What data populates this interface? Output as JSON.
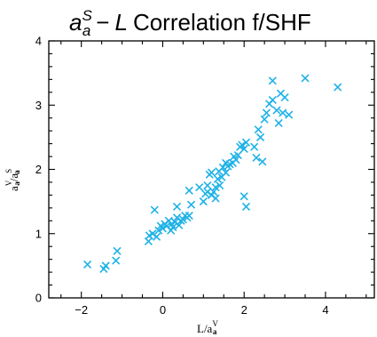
{
  "chart_data": {
    "type": "scatter",
    "title": {
      "math_base": "a",
      "math_sup": "S",
      "math_sub": "a",
      "operator": "−",
      "math_L": "L",
      "text": "Correlation f/SHF"
    },
    "xlabel": {
      "prefix": "L/a",
      "sup": "V",
      "sub": "a"
    },
    "ylabel": {
      "part1": "a",
      "part1_sup": "V",
      "part1_sub": "a",
      "slash": "/a",
      "part2_sup": "S",
      "part2_sub": "a"
    },
    "xlim": [
      -2.8,
      5.2
    ],
    "ylim": [
      0,
      4
    ],
    "x_ticks": [
      -2,
      0,
      2,
      4
    ],
    "x_tick_labels": [
      "−2",
      "0",
      "2",
      "4"
    ],
    "y_ticks": [
      0,
      1,
      2,
      3,
      4
    ],
    "y_tick_labels": [
      "0",
      "1",
      "2",
      "3",
      "4"
    ],
    "grid": false,
    "marker": "x",
    "color": "#1fb2e6",
    "points": [
      [
        -1.85,
        0.52
      ],
      [
        -1.45,
        0.45
      ],
      [
        -1.4,
        0.5
      ],
      [
        -1.15,
        0.58
      ],
      [
        -1.12,
        0.73
      ],
      [
        -0.35,
        0.88
      ],
      [
        -0.33,
        0.97
      ],
      [
        -0.25,
        1.0
      ],
      [
        -0.2,
        1.37
      ],
      [
        -0.15,
        0.95
      ],
      [
        -0.1,
        1.05
      ],
      [
        -0.05,
        1.12
      ],
      [
        0.0,
        1.08
      ],
      [
        0.05,
        1.15
      ],
      [
        0.1,
        1.12
      ],
      [
        0.15,
        1.2
      ],
      [
        0.2,
        1.05
      ],
      [
        0.22,
        1.15
      ],
      [
        0.25,
        1.1
      ],
      [
        0.3,
        1.18
      ],
      [
        0.35,
        1.25
      ],
      [
        0.35,
        1.42
      ],
      [
        0.4,
        1.13
      ],
      [
        0.45,
        1.2
      ],
      [
        0.5,
        1.22
      ],
      [
        0.55,
        1.28
      ],
      [
        0.6,
        1.25
      ],
      [
        0.65,
        1.28
      ],
      [
        0.7,
        1.45
      ],
      [
        0.65,
        1.67
      ],
      [
        0.9,
        1.72
      ],
      [
        1.0,
        1.5
      ],
      [
        1.05,
        1.62
      ],
      [
        1.1,
        1.65
      ],
      [
        1.1,
        1.75
      ],
      [
        1.15,
        1.92
      ],
      [
        1.2,
        1.6
      ],
      [
        1.2,
        1.95
      ],
      [
        1.25,
        1.65
      ],
      [
        1.3,
        1.72
      ],
      [
        1.3,
        1.55
      ],
      [
        1.35,
        1.85
      ],
      [
        1.38,
        1.97
      ],
      [
        1.4,
        1.75
      ],
      [
        1.45,
        1.88
      ],
      [
        1.48,
        2.03
      ],
      [
        1.55,
        1.95
      ],
      [
        1.55,
        2.1
      ],
      [
        1.6,
        2.05
      ],
      [
        1.65,
        2.08
      ],
      [
        1.72,
        2.1
      ],
      [
        1.75,
        2.2
      ],
      [
        1.8,
        2.15
      ],
      [
        1.85,
        2.22
      ],
      [
        1.9,
        2.35
      ],
      [
        1.95,
        2.38
      ],
      [
        2.0,
        2.32
      ],
      [
        2.05,
        2.42
      ],
      [
        2.0,
        1.58
      ],
      [
        2.05,
        1.42
      ],
      [
        2.25,
        2.35
      ],
      [
        2.3,
        2.18
      ],
      [
        2.35,
        2.62
      ],
      [
        2.4,
        2.5
      ],
      [
        2.45,
        2.12
      ],
      [
        2.5,
        2.78
      ],
      [
        2.55,
        2.88
      ],
      [
        2.62,
        3.02
      ],
      [
        2.7,
        3.08
      ],
      [
        2.7,
        3.38
      ],
      [
        2.8,
        2.92
      ],
      [
        2.85,
        2.72
      ],
      [
        2.9,
        3.18
      ],
      [
        2.95,
        2.88
      ],
      [
        3.0,
        3.12
      ],
      [
        3.1,
        2.85
      ],
      [
        3.5,
        3.42
      ],
      [
        4.3,
        3.28
      ]
    ]
  }
}
